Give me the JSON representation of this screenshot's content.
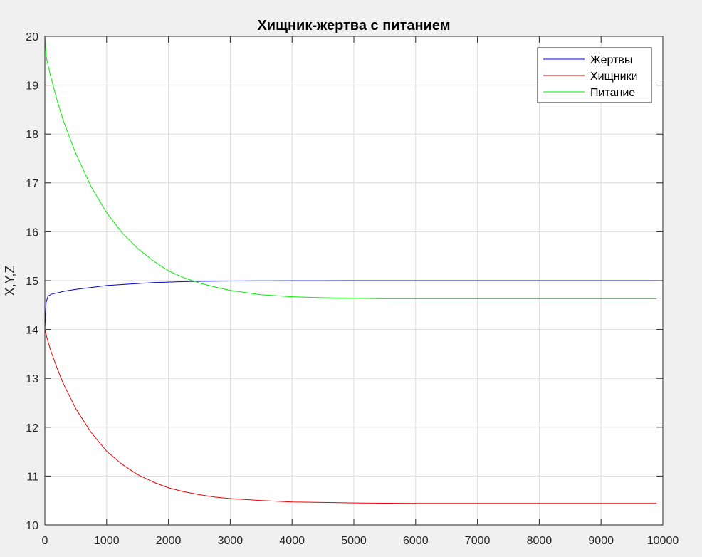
{
  "chart_data": {
    "type": "line",
    "title": "Хищник-жертва с питанием",
    "xlabel": "",
    "ylabel": "X,Y,Z",
    "xlim": [
      0,
      10000
    ],
    "ylim": [
      10,
      20
    ],
    "xticks": [
      "0",
      "1000",
      "2000",
      "3000",
      "4000",
      "5000",
      "6000",
      "7000",
      "8000",
      "9000",
      "10000"
    ],
    "yticks": [
      "10",
      "11",
      "12",
      "13",
      "14",
      "15",
      "16",
      "17",
      "18",
      "19",
      "20"
    ],
    "grid": true,
    "legend_position": "top-right",
    "x": [
      0,
      20,
      50,
      100,
      200,
      300,
      500,
      750,
      1000,
      1250,
      1500,
      1750,
      2000,
      2250,
      2500,
      2750,
      3000,
      3500,
      4000,
      4500,
      5000,
      5500,
      6000,
      7000,
      8000,
      9000,
      9900
    ],
    "series": [
      {
        "name": "Жертвы",
        "color": "#0000cc",
        "values": [
          14.0,
          14.55,
          14.68,
          14.72,
          14.75,
          14.78,
          14.82,
          14.86,
          14.9,
          14.92,
          14.94,
          14.96,
          14.97,
          14.98,
          14.985,
          14.99,
          14.993,
          14.996,
          14.998,
          14.999,
          15.0,
          15.0,
          15.0,
          15.0,
          15.0,
          15.0,
          15.0
        ]
      },
      {
        "name": "Хищники",
        "color": "#ee0000",
        "values": [
          14.0,
          13.9,
          13.76,
          13.55,
          13.2,
          12.89,
          12.38,
          11.89,
          11.51,
          11.24,
          11.03,
          10.88,
          10.76,
          10.68,
          10.62,
          10.57,
          10.54,
          10.5,
          10.47,
          10.46,
          10.45,
          10.445,
          10.44,
          10.44,
          10.44,
          10.44,
          10.44
        ]
      },
      {
        "name": "Питание",
        "color": "#00ee00",
        "values": [
          20.0,
          19.6,
          19.42,
          19.15,
          18.68,
          18.27,
          17.6,
          16.92,
          16.39,
          15.98,
          15.66,
          15.41,
          15.2,
          15.06,
          14.95,
          14.87,
          14.8,
          14.71,
          14.67,
          14.65,
          14.64,
          14.63,
          14.63,
          14.63,
          14.63,
          14.63,
          14.63
        ]
      }
    ]
  },
  "colors": {
    "figure_background": "#f0f0f0",
    "axes_background": "#ffffff",
    "grid": "#dcdcdc",
    "axis": "#262626"
  }
}
